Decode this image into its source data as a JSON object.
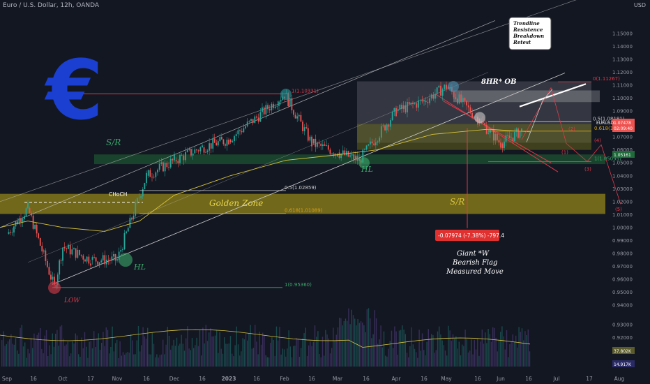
{
  "header": {
    "title": "Euro / U.S. Dollar, 12h, OANDA",
    "unit": "USD"
  },
  "colors": {
    "background": "#131722",
    "bull": "#26a69a",
    "bear": "#ef5350",
    "ema": "#d8c43a",
    "golden_zone": "#8a7d1a",
    "euro_symbol": "#1a3fd1"
  },
  "chart_data": {
    "type": "candlestick",
    "symbol": "EURUSD",
    "ylim": [
      0.935,
      1.16
    ],
    "yticks": [
      0.94,
      0.95,
      0.96,
      0.97,
      0.98,
      0.99,
      1.0,
      1.01,
      1.02,
      1.03,
      1.04,
      1.05,
      1.06,
      1.07,
      1.08,
      1.09,
      1.1,
      1.11,
      1.12,
      1.13,
      1.14,
      1.15
    ],
    "ytick_labels": [
      "0.94000",
      "0.95000",
      "0.96000",
      "0.97000",
      "0.98000",
      "0.99000",
      "1.00000",
      "1.01000",
      "1.02000",
      "1.03000",
      "1.04000",
      "1.05000",
      "1.06000",
      "1.07000",
      "1.08000",
      "1.09000",
      "1.10000",
      "1.11000",
      "1.12000",
      "1.13000",
      "1.14000",
      "1.15000"
    ],
    "xtick_labels": [
      "Sep",
      "16",
      "Oct",
      "17",
      "Nov",
      "16",
      "Dec",
      "16",
      "2023",
      "16",
      "Feb",
      "16",
      "Mar",
      "16",
      "Apr",
      "16",
      "May",
      "16",
      "Jun",
      "16",
      "Jul",
      "17",
      "Aug"
    ],
    "price_path": [
      {
        "t": "Sep",
        "v": 0.995
      },
      {
        "t": "Sep 16",
        "v": 1.015
      },
      {
        "t": "Sep 28",
        "v": 0.9536
      },
      {
        "t": "Oct",
        "v": 0.985
      },
      {
        "t": "Oct 17",
        "v": 0.975
      },
      {
        "t": "Nov",
        "v": 0.975
      },
      {
        "t": "Nov 16",
        "v": 1.04
      },
      {
        "t": "Dec",
        "v": 1.052
      },
      {
        "t": "Dec 16",
        "v": 1.062
      },
      {
        "t": "2023",
        "v": 1.068
      },
      {
        "t": "Jan 16",
        "v": 1.085
      },
      {
        "t": "Feb",
        "v": 1.1033
      },
      {
        "t": "Feb 16",
        "v": 1.065
      },
      {
        "t": "Mar",
        "v": 1.058
      },
      {
        "t": "Mar 16",
        "v": 1.052
      },
      {
        "t": "Apr",
        "v": 1.09
      },
      {
        "t": "Apr 16",
        "v": 1.098
      },
      {
        "t": "May",
        "v": 1.109
      },
      {
        "t": "May 16",
        "v": 1.084
      },
      {
        "t": "Jun",
        "v": 1.065
      },
      {
        "t": "Jun 10",
        "v": 1.0748
      }
    ],
    "price_label": "EURUSD",
    "price_values": [
      "1.07478",
      "02:09:40"
    ],
    "support_price": "1.05161",
    "fib_levels": [
      {
        "label": "0.5(1.02859)",
        "v": 1.02859
      },
      {
        "label": "0.618(1.01089)",
        "v": 1.01089
      },
      {
        "label": "1(0.95360)",
        "v": 0.9536
      },
      {
        "label": "1(1.10331)",
        "v": 1.10331
      },
      {
        "label": "0.5(1.08181)",
        "v": 1.08181
      },
      {
        "label": "0.618(1.07453)",
        "v": 1.07453
      },
      {
        "label": "1(1.05095)",
        "v": 1.05095
      },
      {
        "label": "0(1.11267)",
        "v": 1.11267
      }
    ],
    "annotations": {
      "sr_left": "S/R",
      "sr_right": "S/R",
      "chochs": "CHoCH",
      "golden_zone": "Golden Zone",
      "hl_left": "HL",
      "hl_mid": "HL",
      "low": "LOW",
      "ob": "8HR* OB",
      "callout": [
        "Trendline",
        "Resistence",
        "Breakdown",
        "Retest"
      ],
      "measure": "-0.07974 (-7.38%) -797.4",
      "pattern": [
        "Giant *W",
        "Bearish Flag",
        "Measured Move"
      ],
      "waves": [
        "(1)",
        "(2)",
        "(3)",
        "(4)",
        "(5)"
      ]
    },
    "indicators": {
      "volume_value": "14.917K",
      "oscillator_value": "37.802K"
    },
    "grid": false
  }
}
